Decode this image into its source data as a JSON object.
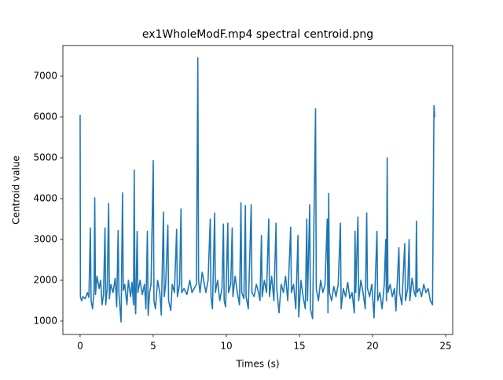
{
  "chart_data": {
    "type": "line",
    "title": "ex1WholeModF.mp4 spectral centroid.png",
    "x_label": "Times (s)",
    "y_label": "Centroid value",
    "color": "#1f77b4",
    "xlim": [
      -1.18,
      25.48
    ],
    "ylim": [
      673,
      7750
    ],
    "xticks": [
      0,
      5,
      10,
      15,
      20,
      25
    ],
    "yticks": [
      1000,
      2000,
      3000,
      4000,
      5000,
      6000,
      7000
    ],
    "x": [
      0.0,
      0.02,
      0.1,
      0.2,
      0.35,
      0.5,
      0.6,
      0.7,
      0.75,
      0.85,
      0.95,
      1.0,
      1.05,
      1.15,
      1.3,
      1.4,
      1.5,
      1.6,
      1.7,
      1.75,
      1.85,
      1.95,
      2.0,
      2.1,
      2.25,
      2.4,
      2.5,
      2.6,
      2.65,
      2.75,
      2.8,
      2.9,
      2.95,
      3.05,
      3.2,
      3.3,
      3.45,
      3.55,
      3.65,
      3.7,
      3.75,
      3.8,
      3.9,
      3.95,
      4.1,
      4.25,
      4.4,
      4.5,
      4.6,
      4.65,
      4.75,
      4.85,
      5.0,
      5.05,
      5.15,
      5.3,
      5.45,
      5.55,
      5.7,
      5.75,
      5.85,
      6.0,
      6.05,
      6.2,
      6.3,
      6.45,
      6.6,
      6.65,
      6.8,
      6.9,
      6.95,
      7.1,
      7.3,
      7.5,
      7.65,
      7.8,
      7.95,
      8.05,
      8.1,
      8.2,
      8.35,
      8.5,
      8.6,
      8.75,
      8.9,
      8.95,
      9.05,
      9.2,
      9.25,
      9.4,
      9.55,
      9.7,
      9.8,
      9.85,
      9.95,
      10.1,
      10.15,
      10.3,
      10.4,
      10.45,
      10.6,
      10.75,
      10.9,
      11.0,
      11.05,
      11.2,
      11.3,
      11.35,
      11.5,
      11.7,
      11.75,
      11.9,
      12.05,
      12.2,
      12.3,
      12.4,
      12.45,
      12.6,
      12.75,
      12.9,
      12.95,
      13.1,
      13.25,
      13.4,
      13.45,
      13.6,
      13.75,
      13.9,
      14.05,
      14.2,
      14.4,
      14.45,
      14.6,
      14.75,
      14.9,
      14.95,
      15.1,
      15.25,
      15.4,
      15.5,
      15.55,
      15.7,
      15.75,
      15.9,
      16.1,
      16.15,
      16.3,
      16.45,
      16.6,
      16.75,
      16.9,
      16.95,
      17.0,
      17.05,
      17.2,
      17.35,
      17.5,
      17.65,
      17.8,
      17.85,
      18.0,
      18.15,
      18.3,
      18.45,
      18.6,
      18.75,
      18.8,
      18.85,
      19.0,
      19.05,
      19.2,
      19.35,
      19.5,
      19.6,
      19.65,
      19.8,
      19.95,
      20.1,
      20.3,
      20.35,
      20.5,
      20.65,
      20.8,
      20.9,
      20.95,
      21.0,
      21.05,
      21.2,
      21.35,
      21.5,
      21.6,
      21.8,
      21.85,
      22.0,
      22.2,
      22.25,
      22.4,
      22.5,
      22.55,
      22.7,
      22.85,
      22.95,
      23.0,
      23.05,
      23.2,
      23.35,
      23.5,
      23.65,
      23.8,
      23.95,
      24.1,
      24.2,
      24.25
    ],
    "values": [
      6050,
      1600,
      1500,
      1600,
      1550,
      1700,
      1580,
      3280,
      1500,
      1300,
      1750,
      4020,
      1650,
      2100,
      1800,
      2000,
      1400,
      1650,
      3280,
      1400,
      1800,
      3880,
      1550,
      1900,
      1700,
      2050,
      1350,
      3220,
      1700,
      1200,
      980,
      4140,
      1750,
      1900,
      1400,
      2000,
      1600,
      1950,
      1400,
      4700,
      1500,
      1180,
      3200,
      1700,
      2000,
      1650,
      1900,
      1300,
      3200,
      1140,
      1700,
      1900,
      4930,
      1500,
      1300,
      2000,
      1700,
      1150,
      3670,
      1600,
      1900,
      3350,
      1500,
      1260,
      1900,
      1700,
      3250,
      1600,
      1900,
      3750,
      1700,
      1800,
      1650,
      2000,
      1700,
      1800,
      1900,
      7450,
      2000,
      1700,
      2200,
      1900,
      1700,
      2000,
      3500,
      1600,
      1300,
      3650,
      1700,
      2000,
      1500,
      1800,
      3380,
      1500,
      1350,
      3400,
      1700,
      1900,
      3280,
      1600,
      2100,
      1700,
      1400,
      3900,
      1700,
      1550,
      3830,
      1600,
      1300,
      3850,
      1700,
      1600,
      1900,
      1700,
      1500,
      3100,
      1600,
      2000,
      1700,
      3500,
      1600,
      2100,
      1500,
      3400,
      1800,
      1200,
      1900,
      1700,
      2100,
      1500,
      3300,
      1700,
      1900,
      1300,
      3100,
      1100,
      2000,
      1600,
      1300,
      3500,
      1500,
      3850,
      1300,
      1060,
      6200,
      1800,
      1500,
      2000,
      1700,
      1900,
      3500,
      1200,
      4130,
      1700,
      1500,
      1850,
      1600,
      1900,
      3400,
      1300,
      1800,
      1600,
      1950,
      1550,
      1700,
      1200,
      3200,
      1700,
      3550,
      1500,
      2000,
      1700,
      1300,
      3650,
      1800,
      1600,
      1900,
      1080,
      3200,
      1500,
      1700,
      1300,
      1900,
      3000,
      1500,
      5000,
      1700,
      1900,
      1600,
      1800,
      1250,
      2800,
      1700,
      1400,
      2900,
      1500,
      1800,
      3000,
      1500,
      2050,
      1700,
      1600,
      3450,
      1700,
      1800,
      1600,
      1900,
      1700,
      1800,
      1500,
      1400,
      6280,
      6000
    ]
  }
}
